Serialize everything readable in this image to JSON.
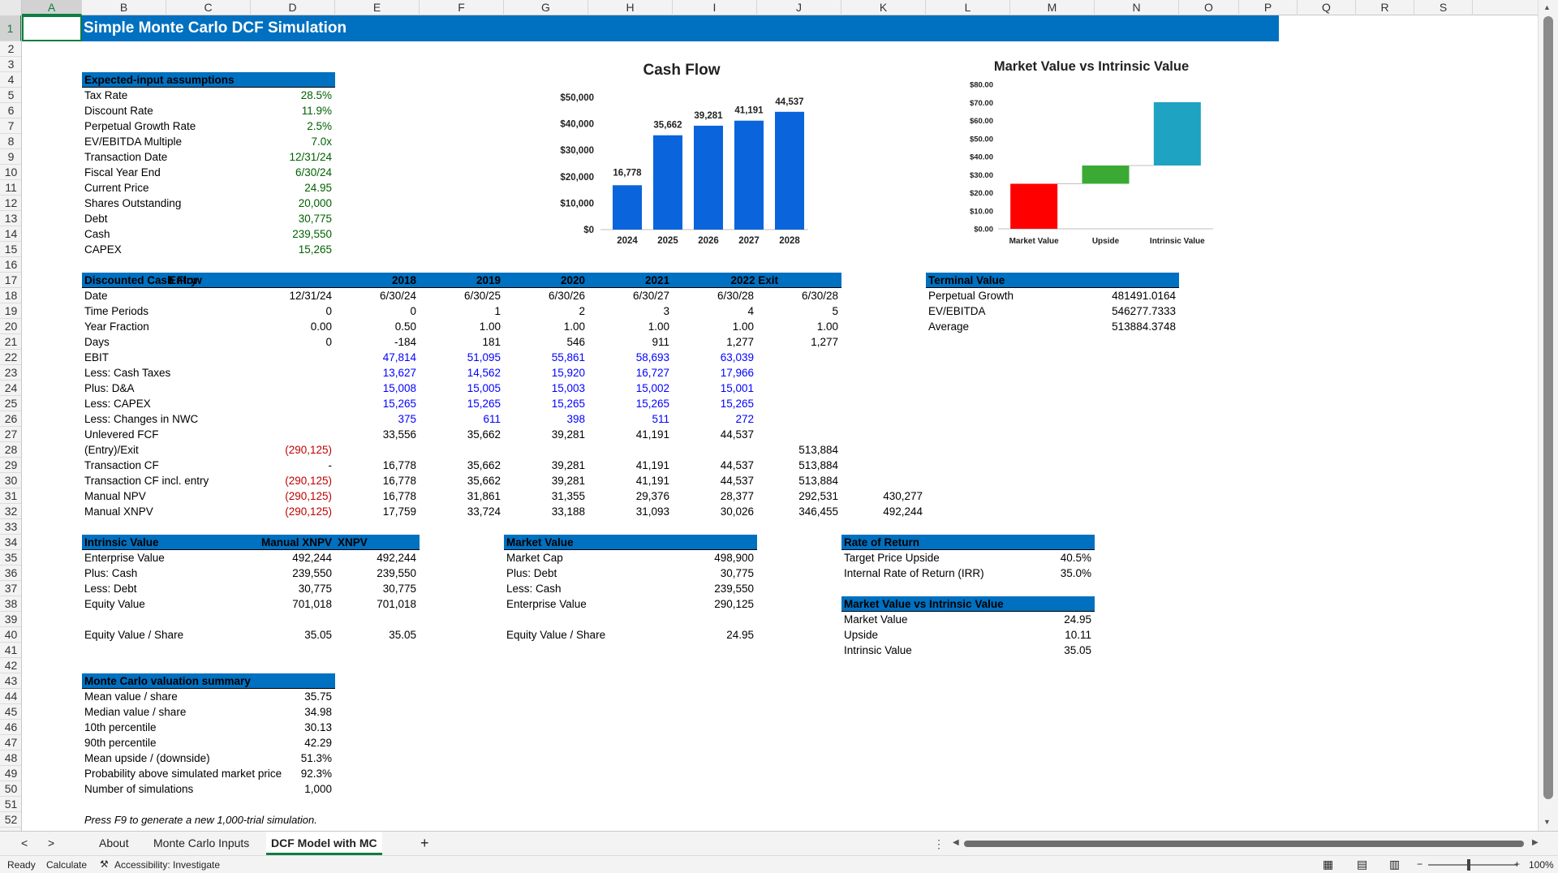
{
  "title": "Simple Monte Carlo DCF Simulation",
  "columns": [
    "A",
    "B",
    "C",
    "D",
    "E",
    "F",
    "G",
    "H",
    "I",
    "J",
    "K",
    "L",
    "M",
    "N",
    "O",
    "P",
    "Q",
    "R",
    "S"
  ],
  "assumptions": {
    "header": "Expected-input assumptions",
    "rows": [
      {
        "label": "Tax Rate",
        "value": "28.5%"
      },
      {
        "label": "Discount Rate",
        "value": "11.9%"
      },
      {
        "label": "Perpetual Growth Rate",
        "value": "2.5%"
      },
      {
        "label": "EV/EBITDA Multiple",
        "value": "7.0x"
      },
      {
        "label": "Transaction Date",
        "value": "12/31/24"
      },
      {
        "label": "Fiscal Year End",
        "value": "6/30/24"
      },
      {
        "label": "Current Price",
        "value": "24.95"
      },
      {
        "label": "Shares Outstanding",
        "value": "20,000"
      },
      {
        "label": "Debt",
        "value": "30,775"
      },
      {
        "label": "Cash",
        "value": "239,550"
      },
      {
        "label": "CAPEX",
        "value": "15,265"
      }
    ]
  },
  "dcf": {
    "header": [
      "Discounted Cash Flow",
      "Entry",
      "2018",
      "2019",
      "2020",
      "2021",
      "2022 Exit"
    ],
    "rows": [
      {
        "label": "Date",
        "vals": [
          "12/31/24",
          "6/30/24",
          "6/30/25",
          "6/30/26",
          "6/30/27",
          "6/30/28",
          "6/30/28"
        ],
        "style": ""
      },
      {
        "label": "Time Periods",
        "vals": [
          "0",
          "0",
          "1",
          "2",
          "3",
          "4",
          "5"
        ],
        "style": ""
      },
      {
        "label": "Year Fraction",
        "vals": [
          "0.00",
          "0.50",
          "1.00",
          "1.00",
          "1.00",
          "1.00",
          "1.00"
        ],
        "style": ""
      },
      {
        "label": "Days",
        "vals": [
          "0",
          "-184",
          "181",
          "546",
          "911",
          "1,277",
          "1,277"
        ],
        "style": ""
      },
      {
        "label": "EBIT",
        "vals": [
          "",
          "47,814",
          "51,095",
          "55,861",
          "58,693",
          "63,039",
          ""
        ],
        "style": "blue"
      },
      {
        "label": "Less: Cash Taxes",
        "vals": [
          "",
          "13,627",
          "14,562",
          "15,920",
          "16,727",
          "17,966",
          ""
        ],
        "style": "blue"
      },
      {
        "label": "Plus: D&A",
        "vals": [
          "",
          "15,008",
          "15,005",
          "15,003",
          "15,002",
          "15,001",
          ""
        ],
        "style": "blue"
      },
      {
        "label": "Less: CAPEX",
        "vals": [
          "",
          "15,265",
          "15,265",
          "15,265",
          "15,265",
          "15,265",
          ""
        ],
        "style": "blue"
      },
      {
        "label": "Less: Changes in NWC",
        "vals": [
          "",
          "375",
          "611",
          "398",
          "511",
          "272",
          ""
        ],
        "style": "blue"
      },
      {
        "label": "Unlevered FCF",
        "vals": [
          "",
          "33,556",
          "35,662",
          "39,281",
          "41,191",
          "44,537",
          ""
        ],
        "style": ""
      },
      {
        "label": "(Entry)/Exit",
        "vals": [
          "(290,125)",
          "",
          "",
          "",
          "",
          "",
          "513,884"
        ],
        "style": "entry"
      },
      {
        "label": "Transaction CF",
        "vals": [
          "-",
          "16,778",
          "35,662",
          "39,281",
          "41,191",
          "44,537",
          "513,884"
        ],
        "style": ""
      },
      {
        "label": "Transaction CF incl. entry",
        "vals": [
          "(290,125)",
          "16,778",
          "35,662",
          "39,281",
          "41,191",
          "44,537",
          "513,884"
        ],
        "style": "entry"
      },
      {
        "label": "Manual NPV",
        "vals": [
          "(290,125)",
          "16,778",
          "31,861",
          "31,355",
          "29,376",
          "28,377",
          "292,531"
        ],
        "style": "entry",
        "extra": "430,277"
      },
      {
        "label": "Manual XNPV",
        "vals": [
          "(290,125)",
          "17,759",
          "33,724",
          "33,188",
          "31,093",
          "30,026",
          "346,455"
        ],
        "style": "entry",
        "extra": "492,244"
      }
    ]
  },
  "terminal": {
    "header": "Terminal Value",
    "rows": [
      {
        "label": "Perpetual Growth",
        "value": "481491.0164"
      },
      {
        "label": "EV/EBITDA",
        "value": "546277.7333"
      },
      {
        "label": "Average",
        "value": "513884.3748"
      }
    ]
  },
  "intrinsic": {
    "header": [
      "Intrinsic Value",
      "Manual XNPV",
      "XNPV"
    ],
    "rows": [
      {
        "label": "Enterprise Value",
        "a": "492,244",
        "b": "492,244"
      },
      {
        "label": "Plus: Cash",
        "a": "239,550",
        "b": "239,550"
      },
      {
        "label": "Less: Debt",
        "a": "30,775",
        "b": "30,775"
      },
      {
        "label": "Equity Value",
        "a": "701,018",
        "b": "701,018"
      }
    ],
    "per_share_label": "Equity Value / Share",
    "per_share_a": "35.05",
    "per_share_b": "35.05"
  },
  "market": {
    "header": "Market Value",
    "rows": [
      {
        "label": "Market Cap",
        "value": "498,900"
      },
      {
        "label": "Plus: Debt",
        "value": "30,775"
      },
      {
        "label": "Less: Cash",
        "value": "239,550"
      },
      {
        "label": "Enterprise Value",
        "value": "290,125"
      }
    ],
    "per_share_label": "Equity Value / Share",
    "per_share": "24.95"
  },
  "ror": {
    "header": "Rate of Return",
    "rows": [
      {
        "label": "Target Price Upside",
        "value": "40.5%"
      },
      {
        "label": "Internal Rate of Return (IRR)",
        "value": "35.0%"
      }
    ]
  },
  "mvi": {
    "header": "Market Value vs Intrinsic Value",
    "rows": [
      {
        "label": "Market Value",
        "value": "24.95"
      },
      {
        "label": "Upside",
        "value": "10.11"
      },
      {
        "label": "Intrinsic Value",
        "value": "35.05"
      }
    ]
  },
  "mc": {
    "header": "Monte Carlo valuation summary",
    "rows": [
      {
        "label": "Mean value / share",
        "value": "35.75"
      },
      {
        "label": "Median value / share",
        "value": "34.98"
      },
      {
        "label": "10th percentile",
        "value": "30.13"
      },
      {
        "label": "90th percentile",
        "value": "42.29"
      },
      {
        "label": "Mean upside / (downside)",
        "value": "51.3%"
      },
      {
        "label": "Probability above simulated market price",
        "value": "92.3%"
      },
      {
        "label": "Number of simulations",
        "value": "1,000"
      }
    ],
    "note": "Press F9 to generate a new 1,000-trial simulation."
  },
  "chart_data": [
    {
      "type": "bar",
      "title": "Cash Flow",
      "categories": [
        "2024",
        "2025",
        "2026",
        "2027",
        "2028"
      ],
      "values": [
        16778,
        35662,
        39281,
        41191,
        44537
      ],
      "data_labels": [
        "16,778",
        "35,662",
        "39,281",
        "41,191",
        "44,537"
      ],
      "ylim": [
        0,
        50000
      ],
      "yticks": [
        "$0",
        "$10,000",
        "$20,000",
        "$30,000",
        "$40,000",
        "$50,000"
      ],
      "color": "#0a64dc"
    },
    {
      "type": "bar",
      "title": "Market Value vs Intrinsic Value",
      "categories": [
        "Market Value",
        "Upside",
        "Intrinsic Value"
      ],
      "values": [
        24.95,
        10.11,
        35.05
      ],
      "bases": [
        0,
        24.95,
        35.06
      ],
      "tops": [
        24.95,
        35.06,
        70.11
      ],
      "colors": [
        "#ff0000",
        "#3aaa35",
        "#1ea3c2"
      ],
      "ylim": [
        0,
        80
      ],
      "yticks": [
        "$0.00",
        "$10.00",
        "$20.00",
        "$30.00",
        "$40.00",
        "$50.00",
        "$60.00",
        "$70.00",
        "$80.00"
      ]
    }
  ],
  "tabs": {
    "nav_prev": "<",
    "nav_next": ">",
    "items": [
      "About",
      "Monte Carlo Inputs",
      "DCF Model with MC"
    ],
    "active": 2,
    "add": "+"
  },
  "status": {
    "ready": "Ready",
    "calculate": "Calculate",
    "accessibility": "Accessibility: Investigate",
    "zoom": "100%"
  }
}
